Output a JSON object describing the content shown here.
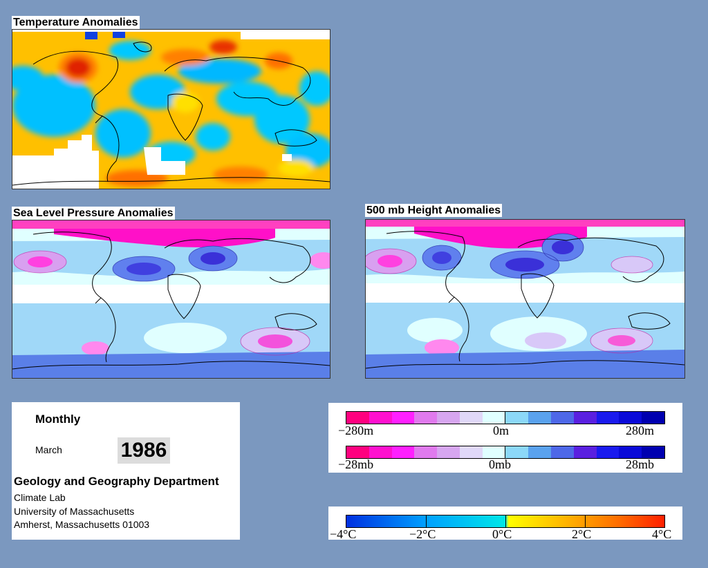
{
  "panels": {
    "temperature": {
      "title": "Temperature Anomalies"
    },
    "slp": {
      "title": "Sea Level Pressure Anomalies"
    },
    "height500": {
      "title": "500 mb Height Anomalies"
    }
  },
  "info": {
    "period": "Monthly",
    "month": "March",
    "year": "1986",
    "department": "Geology and Geography Department",
    "lab": "Climate Lab",
    "university": "University of Massachusetts",
    "address": "Amherst, Massachusetts 01003"
  },
  "legends": {
    "height": {
      "min": "−280m",
      "mid": "0m",
      "max": "280m"
    },
    "pressure": {
      "min": "−28mb",
      "mid": "0mb",
      "max": "28mb"
    },
    "temperature": {
      "t1": "−4°C",
      "t2": "−2°C",
      "t3": "0°C",
      "t4": "2°C",
      "t5": "4°C"
    }
  },
  "colors": {
    "page_bg": "#7b98bf",
    "anomaly_scale": [
      "#ff007f",
      "#ff10cf",
      "#ff20ff",
      "#e07aee",
      "#d7a6f0",
      "#e0d8f8",
      "#e0ffff",
      "#8cd8f8",
      "#5aa2ee",
      "#4e68e8",
      "#5a20e0",
      "#1a1aee",
      "#0a0ad8",
      "#0000b0"
    ],
    "temperature_scale": [
      "#0030e0",
      "#00a0ff",
      "#00e8e8",
      "#ffff00",
      "#ffb000",
      "#ff7000",
      "#ff2000"
    ]
  }
}
